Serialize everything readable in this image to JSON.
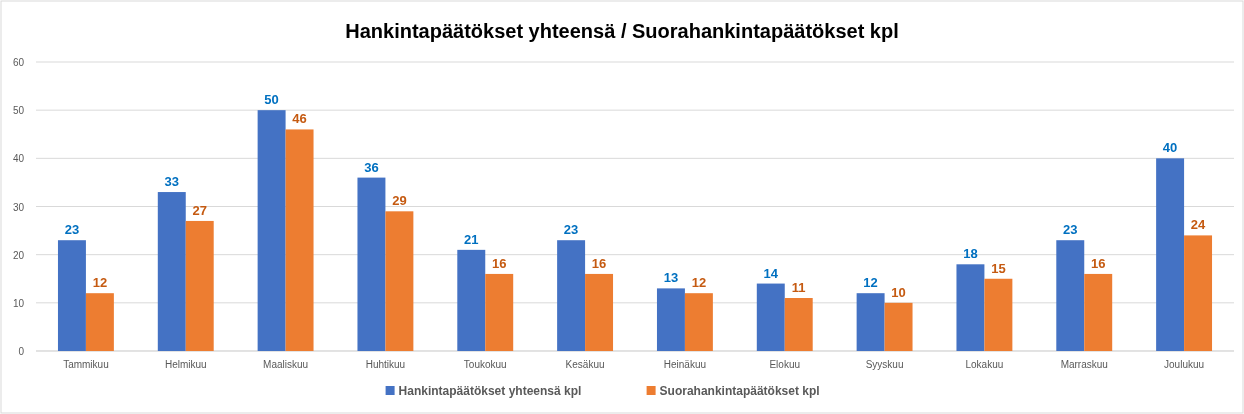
{
  "chart_data": {
    "type": "bar",
    "title": "Hankintapäätökset yhteensä / Suorahankintapäätökset kpl",
    "categories": [
      "Tammikuu",
      "Helmikuu",
      "Maaliskuu",
      "Huhtikuu",
      "Toukokuu",
      "Kesäkuu",
      "Heinäkuu",
      "Elokuu",
      "Syyskuu",
      "Lokakuu",
      "Marraskuu",
      "Joulukuu"
    ],
    "series": [
      {
        "name": "Hankintapäätökset yhteensä kpl",
        "color": "#4472c4",
        "values": [
          23,
          33,
          50,
          36,
          21,
          23,
          13,
          14,
          12,
          18,
          23,
          40
        ]
      },
      {
        "name": "Suorahankintapäätökset kpl",
        "color": "#ed7d31",
        "values": [
          12,
          27,
          46,
          29,
          16,
          16,
          12,
          11,
          10,
          15,
          16,
          24
        ]
      }
    ],
    "ylim": [
      0,
      60
    ],
    "yticks": [
      0,
      10,
      20,
      30,
      40,
      50,
      60
    ],
    "grid": "y",
    "legend": "bottom",
    "data_labels": true
  }
}
